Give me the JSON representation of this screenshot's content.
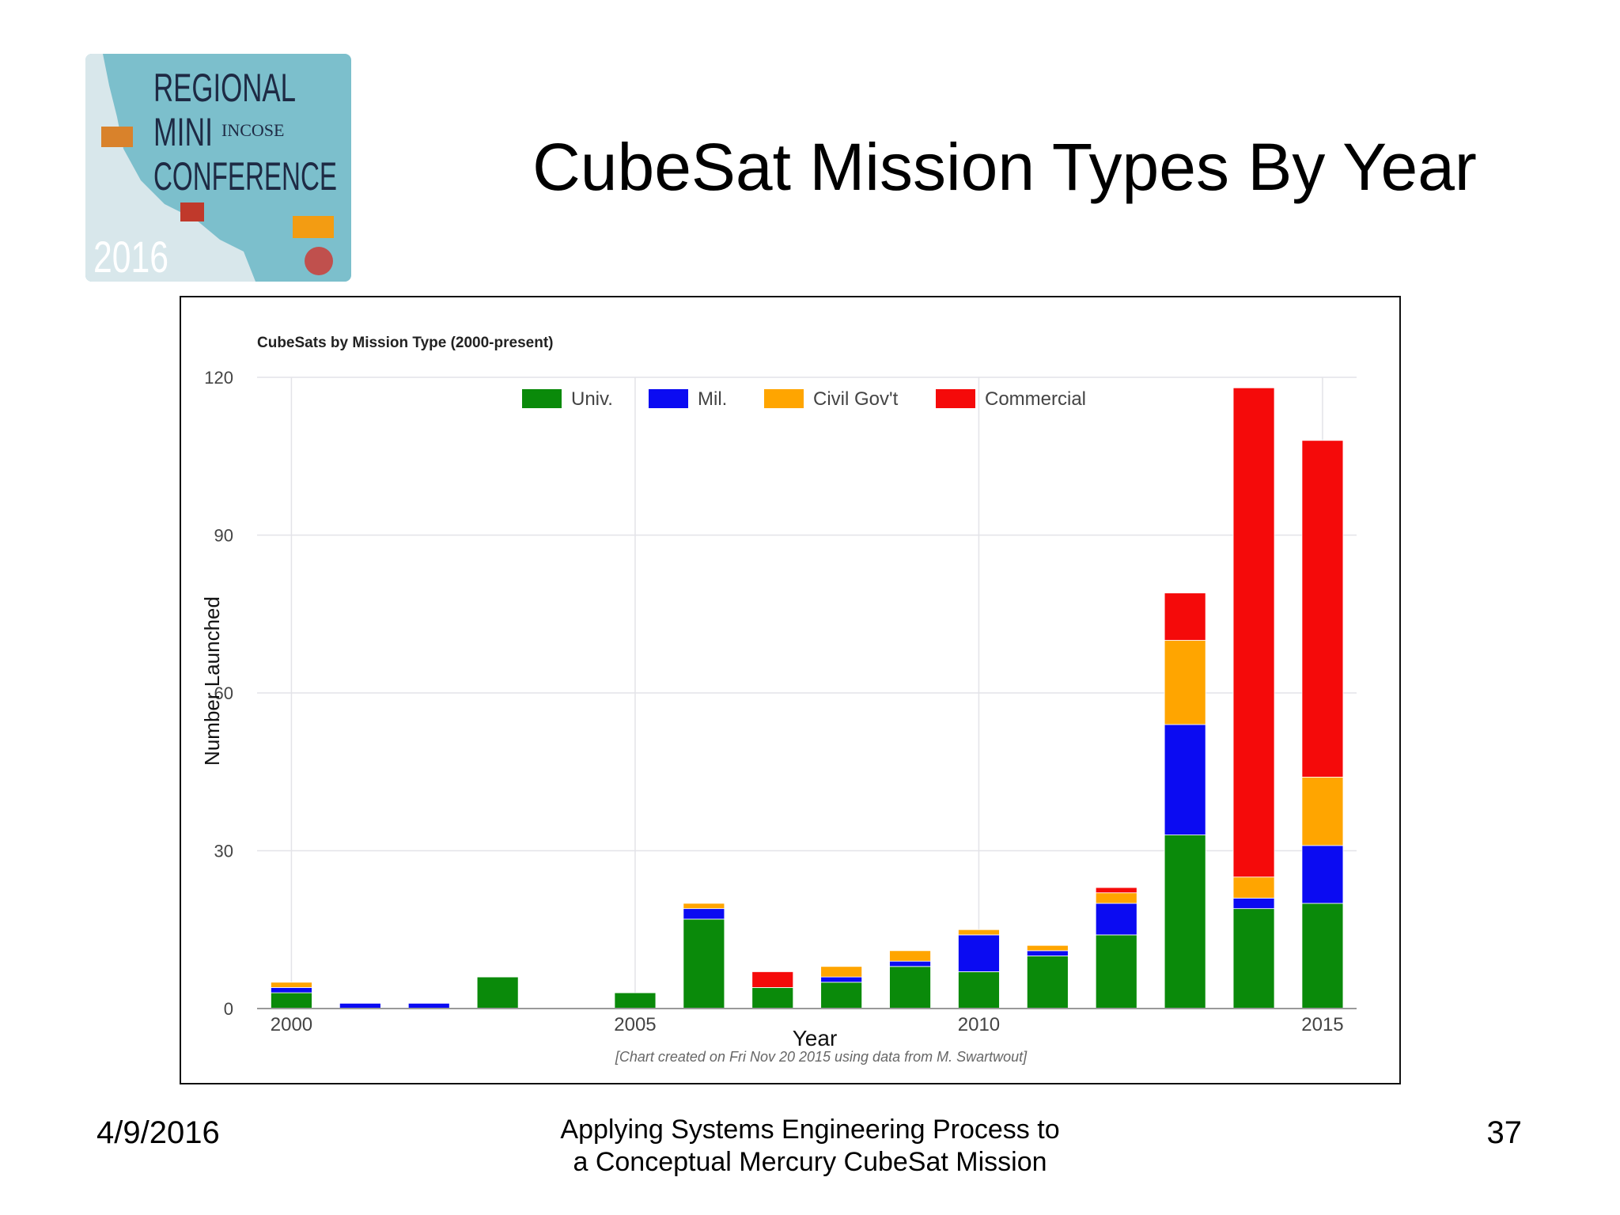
{
  "slide": {
    "title": "CubeSat Mission Types By Year",
    "footer_date": "4/9/2016",
    "footer_line1": "Applying Systems Engineering Process to",
    "footer_line2": "a Conceptual Mercury CubeSat Mission",
    "page_number": "37"
  },
  "logo": {
    "line1": "REGIONAL",
    "line2": "MINI",
    "line3": "CONFERENCE",
    "year": "2016",
    "org": "INCOSE"
  },
  "colors": {
    "Univ.": "#0a8a0a",
    "Mil.": "#0b0bf2",
    "Civil Gov't": "#ffa500",
    "Commercial": "#f50a0a",
    "grid": "#e3e3e8",
    "logo_bg": "#7cbfcc"
  },
  "chart_data": {
    "type": "bar",
    "stacked": true,
    "title": "CubeSats by Mission Type (2000-present)",
    "xlabel": "Year",
    "ylabel": "Number Launched",
    "caption": "[Chart created on Fri Nov 20 2015 using data from M. Swartwout]",
    "categories": [
      2000,
      2001,
      2002,
      2003,
      2004,
      2005,
      2006,
      2007,
      2008,
      2009,
      2010,
      2011,
      2012,
      2013,
      2014,
      2015
    ],
    "x_ticks": [
      2000,
      2005,
      2010,
      2015
    ],
    "ylim": [
      0,
      120
    ],
    "y_ticks": [
      0,
      30,
      60,
      90,
      120
    ],
    "legend_position": "top",
    "series": [
      {
        "name": "Univ.",
        "values": [
          3,
          0,
          0,
          6,
          0,
          3,
          17,
          4,
          5,
          8,
          7,
          10,
          14,
          33,
          19,
          20
        ]
      },
      {
        "name": "Mil.",
        "values": [
          1,
          1,
          1,
          0,
          0,
          0,
          2,
          0,
          1,
          1,
          7,
          1,
          6,
          21,
          2,
          11
        ]
      },
      {
        "name": "Civil Gov't",
        "values": [
          1,
          0,
          0,
          0,
          0,
          0,
          1,
          0,
          2,
          2,
          1,
          1,
          2,
          16,
          4,
          13
        ]
      },
      {
        "name": "Commercial",
        "values": [
          0,
          0,
          0,
          0,
          0,
          0,
          0,
          3,
          0,
          0,
          0,
          0,
          1,
          9,
          93,
          64
        ]
      }
    ]
  }
}
